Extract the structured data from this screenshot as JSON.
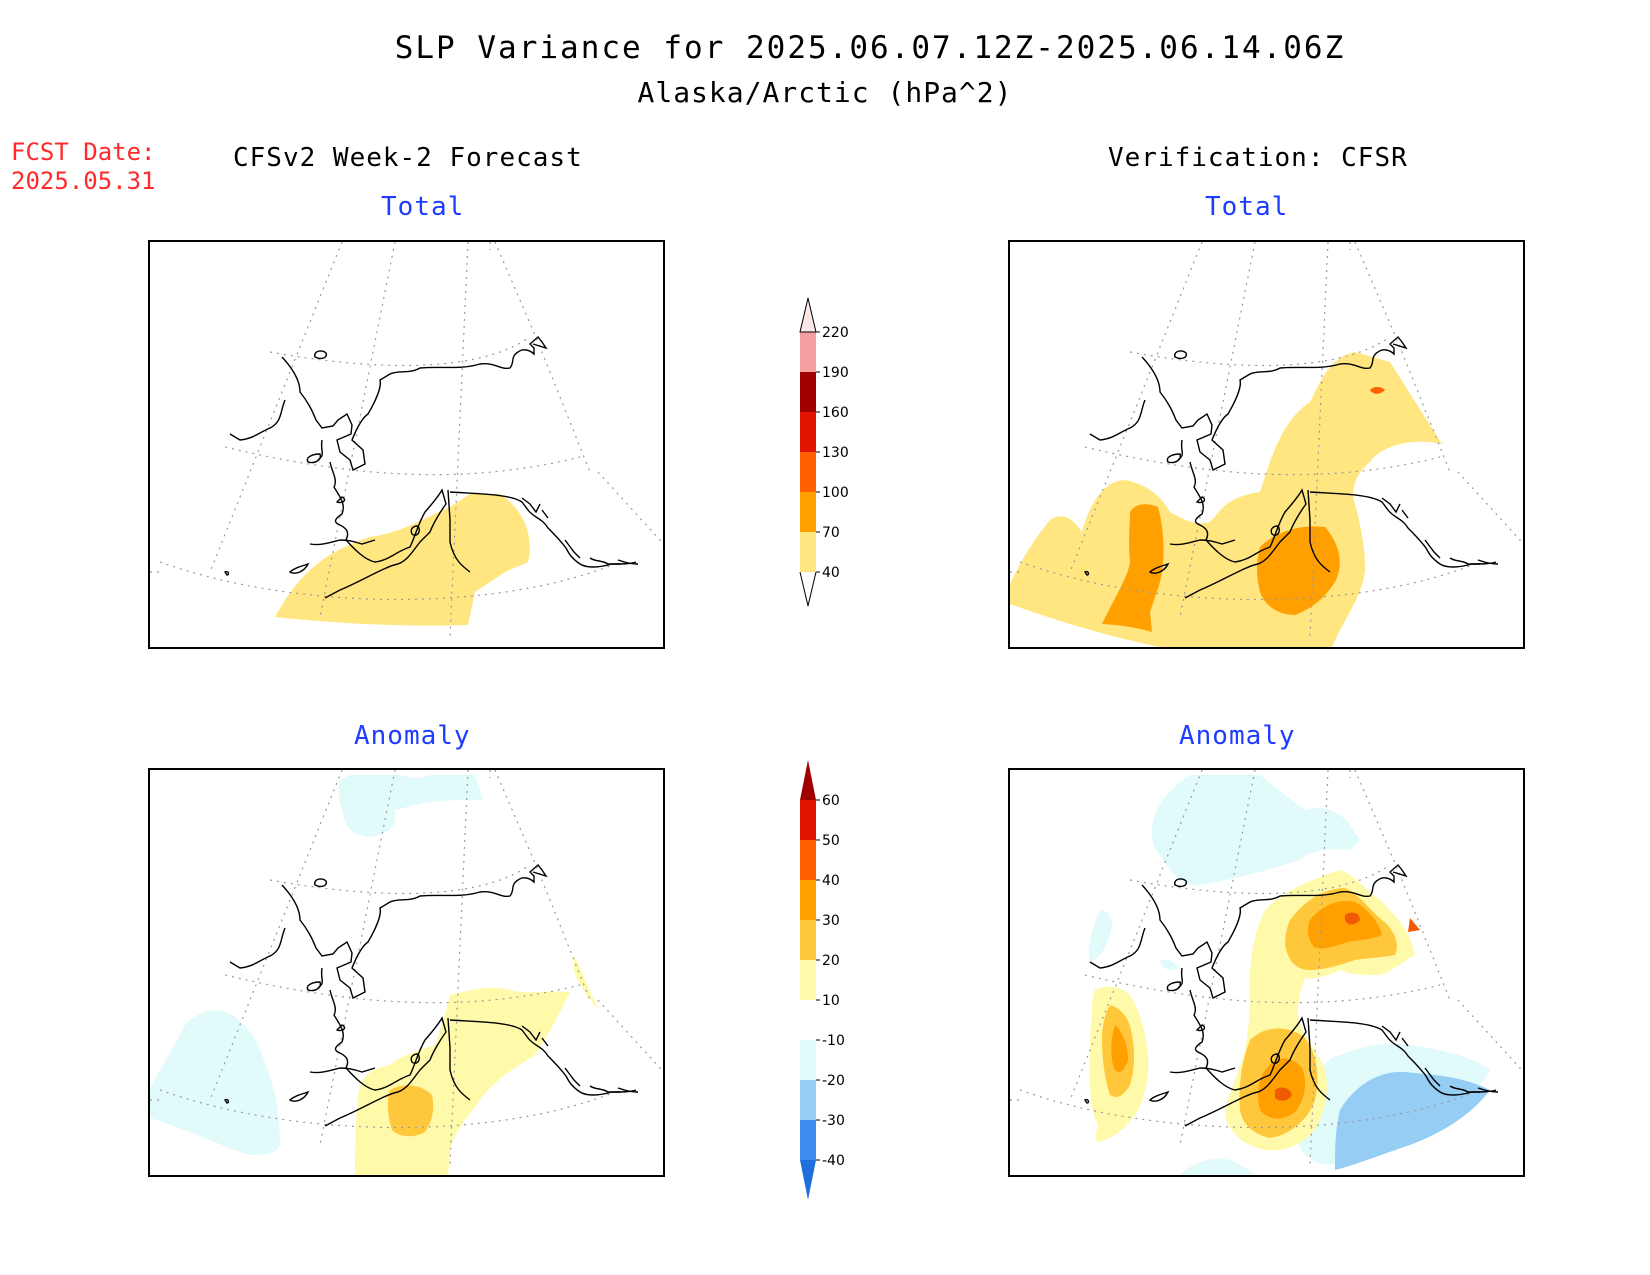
{
  "header": {
    "title": "SLP Variance for 2025.06.07.12Z-2025.06.14.06Z",
    "subtitle": "Alaska/Arctic (hPa^2)",
    "fcst_label": "FCST Date:",
    "fcst_date": "2025.05.31"
  },
  "columns": {
    "left": "CFSv2 Week-2 Forecast",
    "right": "Verification: CFSR"
  },
  "panels": {
    "top_left": "Total",
    "top_right": "Total",
    "bottom_left": "Anomaly",
    "bottom_right": "Anomaly"
  },
  "colorbars": {
    "total": {
      "labels": [
        "40",
        "70",
        "100",
        "130",
        "160",
        "190",
        "220"
      ],
      "colors": [
        "#ffe680",
        "#ffa000",
        "#ff6000",
        "#e01400",
        "#a00000",
        "#f4a0a0",
        "#fde6e6"
      ]
    },
    "anomaly": {
      "labels": [
        "-40",
        "-30",
        "-20",
        "-10",
        "10",
        "20",
        "30",
        "40",
        "50",
        "60"
      ],
      "colors": [
        "#1e6edc",
        "#3c8cf0",
        "#96cdf5",
        "#e1fafa",
        "#ffffff",
        "#fffaaa",
        "#ffc83c",
        "#ffa000",
        "#ff6000",
        "#e01400",
        "#a00000"
      ]
    }
  },
  "shading_colors": {
    "light_yellow": "#ffe680",
    "orange": "#ffa000",
    "dark_orange": "#ff6000",
    "red_orange": "#f05a00",
    "pale_yellow": "#fffaaa",
    "light_orange": "#ffc83c",
    "pale_cyan": "#e1fafa",
    "light_blue": "#96cdf5"
  }
}
